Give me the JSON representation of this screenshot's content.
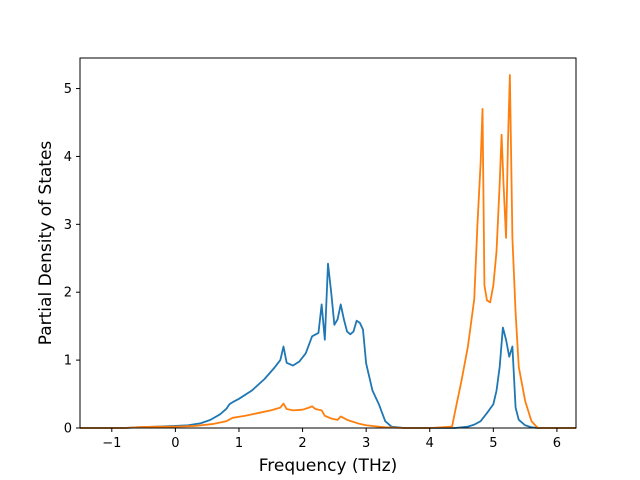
{
  "chart_data": {
    "type": "line",
    "title": "",
    "xlabel": "Frequency (THz)",
    "ylabel": "Partial Density of States",
    "xlim": [
      -1.5,
      6.3
    ],
    "ylim": [
      0,
      5.45
    ],
    "xticks": [
      -1,
      0,
      1,
      2,
      3,
      4,
      5,
      6
    ],
    "xtick_labels": [
      "−1",
      "0",
      "1",
      "2",
      "3",
      "4",
      "5",
      "6"
    ],
    "yticks": [
      0,
      1,
      2,
      3,
      4,
      5
    ],
    "ytick_labels": [
      "0",
      "1",
      "2",
      "3",
      "4",
      "5"
    ],
    "grid": false,
    "legend": "none",
    "series": [
      {
        "color": "#1f77b4",
        "x": [
          -1.5,
          -0.8,
          -0.6,
          -0.3,
          0,
          0.2,
          0.4,
          0.55,
          0.7,
          0.8,
          0.85,
          0.9,
          1.0,
          1.2,
          1.4,
          1.55,
          1.65,
          1.7,
          1.75,
          1.85,
          1.95,
          2.05,
          2.15,
          2.25,
          2.3,
          2.35,
          2.4,
          2.45,
          2.5,
          2.55,
          2.6,
          2.65,
          2.7,
          2.75,
          2.8,
          2.85,
          2.9,
          2.95,
          3.0,
          3.1,
          3.2,
          3.3,
          3.4,
          3.6,
          4.0,
          4.4,
          4.6,
          4.7,
          4.8,
          4.9,
          5.0,
          5.05,
          5.1,
          5.15,
          5.2,
          5.25,
          5.3,
          5.35,
          5.4,
          5.5,
          5.6,
          5.7,
          6.0,
          6.3
        ],
        "y": [
          0,
          0,
          0.01,
          0.02,
          0.03,
          0.04,
          0.07,
          0.12,
          0.2,
          0.28,
          0.35,
          0.38,
          0.43,
          0.55,
          0.72,
          0.88,
          1.0,
          1.2,
          0.96,
          0.92,
          0.98,
          1.1,
          1.35,
          1.4,
          1.82,
          1.3,
          2.42,
          2.0,
          1.52,
          1.6,
          1.82,
          1.6,
          1.42,
          1.38,
          1.42,
          1.58,
          1.55,
          1.45,
          0.95,
          0.55,
          0.35,
          0.1,
          0.02,
          0,
          0,
          0,
          0.02,
          0.05,
          0.1,
          0.22,
          0.35,
          0.55,
          0.9,
          1.48,
          1.3,
          1.05,
          1.2,
          0.3,
          0.12,
          0.04,
          0.01,
          0,
          0,
          0
        ]
      },
      {
        "color": "#ff7f0e",
        "x": [
          -1.5,
          -0.8,
          -0.6,
          -0.3,
          0,
          0.3,
          0.6,
          0.8,
          0.9,
          1.1,
          1.3,
          1.5,
          1.65,
          1.7,
          1.75,
          1.85,
          2.0,
          2.1,
          2.15,
          2.2,
          2.3,
          2.35,
          2.45,
          2.55,
          2.6,
          2.7,
          2.9,
          3.0,
          3.3,
          3.6,
          4.0,
          4.35,
          4.4,
          4.5,
          4.6,
          4.7,
          4.75,
          4.8,
          4.83,
          4.86,
          4.9,
          4.95,
          5.0,
          5.05,
          5.1,
          5.13,
          5.16,
          5.2,
          5.23,
          5.26,
          5.3,
          5.35,
          5.4,
          5.5,
          5.6,
          5.7,
          6.0,
          6.3
        ],
        "y": [
          0,
          0,
          0.01,
          0.02,
          0.02,
          0.03,
          0.06,
          0.1,
          0.15,
          0.18,
          0.22,
          0.26,
          0.3,
          0.36,
          0.28,
          0.26,
          0.27,
          0.3,
          0.32,
          0.28,
          0.26,
          0.18,
          0.14,
          0.12,
          0.17,
          0.12,
          0.06,
          0.04,
          0.01,
          0,
          0,
          0.02,
          0.25,
          0.7,
          1.2,
          1.9,
          3.0,
          3.9,
          4.7,
          2.1,
          1.88,
          1.85,
          2.1,
          2.6,
          3.6,
          4.32,
          3.6,
          2.8,
          4.2,
          5.2,
          2.8,
          1.7,
          0.9,
          0.4,
          0.1,
          0,
          0,
          0
        ]
      }
    ]
  }
}
